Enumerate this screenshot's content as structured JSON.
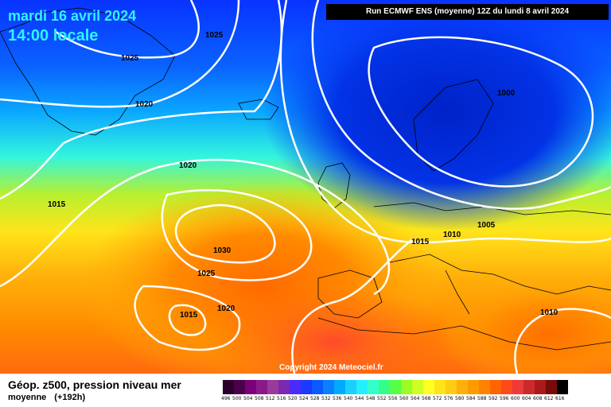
{
  "header": {
    "date_line": "mardi 16 avril 2024",
    "time_line": "14:00 locale",
    "run_info": "Run ECMWF ENS (moyenne) 12Z du lundi 8 avril 2024"
  },
  "map": {
    "isobar_labels": [
      "1025",
      "1025",
      "1020",
      "1020",
      "1015",
      "1030",
      "1025",
      "1020",
      "1015",
      "1015",
      "1010",
      "1005",
      "1000",
      "1010"
    ],
    "copyright": "Copyright 2024 Meteociel.fr"
  },
  "footer": {
    "parameter": "Géop. z500, pression niveau mer",
    "mode": "moyenne",
    "lead_time": "(+192h)"
  },
  "legend": {
    "ticks": [
      "496",
      "500",
      "504",
      "508",
      "512",
      "516",
      "520",
      "524",
      "528",
      "532",
      "536",
      "540",
      "544",
      "548",
      "552",
      "556",
      "560",
      "564",
      "568",
      "572",
      "576",
      "580",
      "584",
      "588",
      "592",
      "596",
      "600",
      "604",
      "608",
      "612",
      "616"
    ],
    "colors": [
      "#2a002a",
      "#4b004b",
      "#7a007a",
      "#8a1a8a",
      "#9a3a9a",
      "#7a2ab0",
      "#4a2aff",
      "#1a3aff",
      "#0a5aff",
      "#0a80ff",
      "#00aaff",
      "#1ad0ff",
      "#22f0ff",
      "#33ffcc",
      "#33ff88",
      "#55ff44",
      "#99ff22",
      "#ccff22",
      "#ffff22",
      "#ffe41a",
      "#ffcc12",
      "#ffb00a",
      "#ff9a00",
      "#ff8200",
      "#ff6400",
      "#ff4a1a",
      "#ee3a3a",
      "#cc2a2a",
      "#aa1a1a",
      "#7a0a0a",
      "#000000"
    ]
  }
}
